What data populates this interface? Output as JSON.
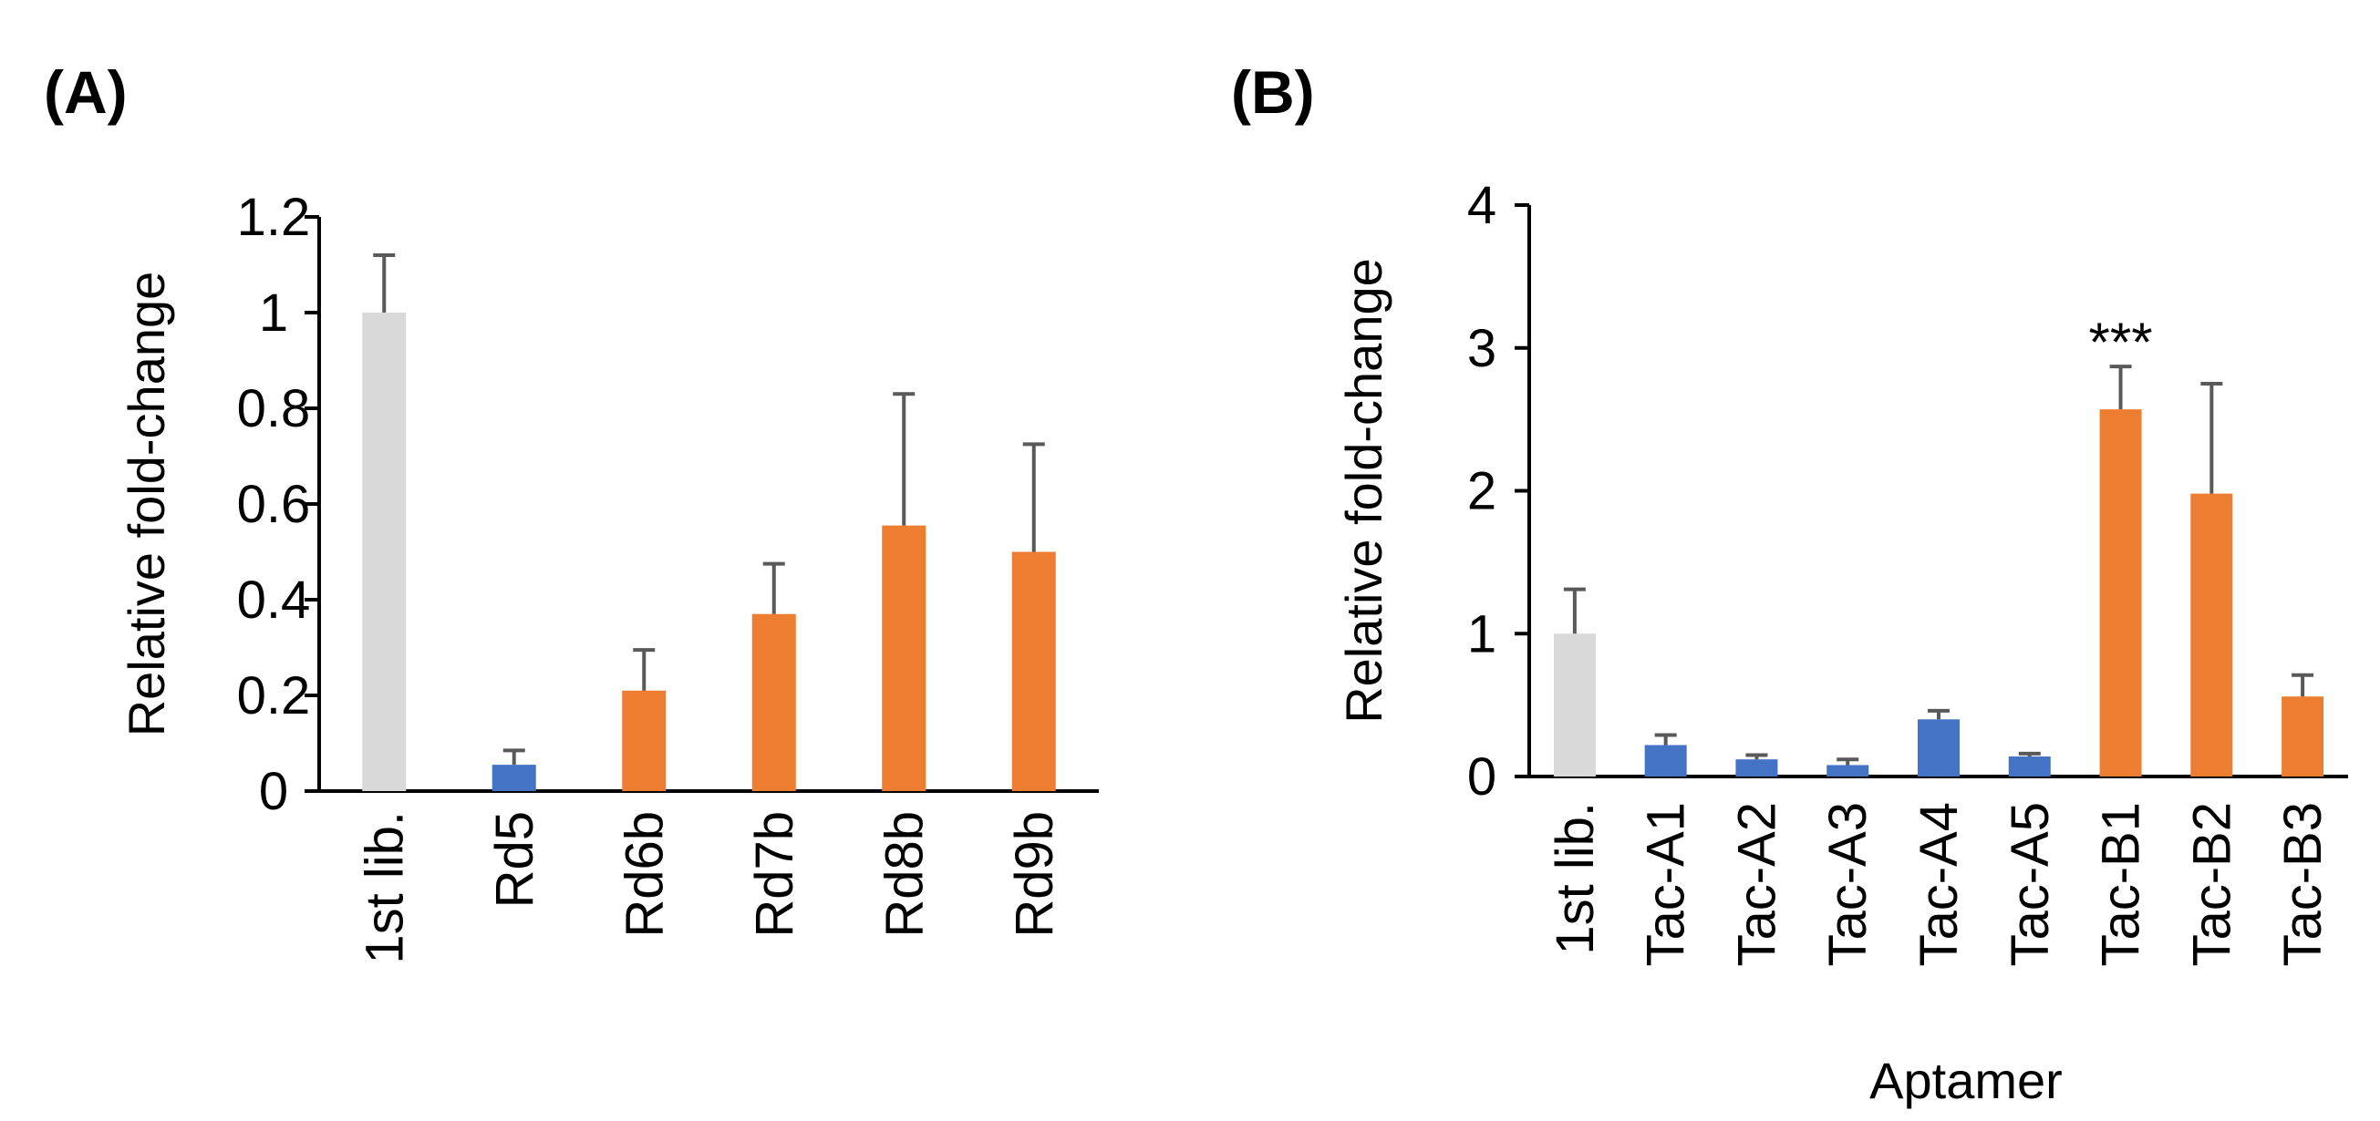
{
  "colors": {
    "library": "#d9d9d9",
    "blue": "#4472c4",
    "orange": "#ed7d31"
  },
  "panels": [
    {
      "label": "(A)"
    },
    {
      "label": "(B)"
    }
  ],
  "chart_data": [
    {
      "type": "bar",
      "panel": "(A)",
      "title": "",
      "xlabel": "",
      "ylabel": "Relative fold-change",
      "ylim": [
        0,
        1.2
      ],
      "yticks": [
        "0",
        "0.2",
        "0.4",
        "0.6",
        "0.8",
        "1",
        "1.2"
      ],
      "ytick_values": [
        0,
        0.2,
        0.4,
        0.6,
        0.8,
        1.0,
        1.2
      ],
      "categories": [
        "1st lib.",
        "Rd5",
        "Rd6b",
        "Rd7b",
        "Rd8b",
        "Rd9b"
      ],
      "values": [
        1.0,
        0.055,
        0.21,
        0.37,
        0.555,
        0.5
      ],
      "errors": [
        0.12,
        0.03,
        0.085,
        0.105,
        0.275,
        0.225
      ],
      "bar_colors": [
        "library",
        "blue",
        "orange",
        "orange",
        "orange",
        "orange"
      ],
      "grid": false,
      "annotations": []
    },
    {
      "type": "bar",
      "panel": "(B)",
      "title": "",
      "xlabel": "Aptamer",
      "ylabel": "Relative fold-change",
      "ylim": [
        0,
        4
      ],
      "yticks": [
        "0",
        "1",
        "2",
        "3",
        "4"
      ],
      "ytick_values": [
        0,
        1,
        2,
        3,
        4
      ],
      "categories": [
        "1st lib.",
        "Tac-A1",
        "Tac-A2",
        "Tac-A3",
        "Tac-A4",
        "Tac-A5",
        "Tac-B1",
        "Tac-B2",
        "Tac-B3"
      ],
      "values": [
        1.0,
        0.22,
        0.12,
        0.08,
        0.4,
        0.14,
        2.57,
        1.98,
        0.56
      ],
      "errors": [
        0.31,
        0.07,
        0.03,
        0.04,
        0.06,
        0.02,
        0.3,
        0.77,
        0.15
      ],
      "bar_colors": [
        "library",
        "blue",
        "blue",
        "blue",
        "blue",
        "blue",
        "orange",
        "orange",
        "orange"
      ],
      "grid": false,
      "annotations": [
        {
          "category": "Tac-B1",
          "text": "***"
        }
      ]
    }
  ]
}
